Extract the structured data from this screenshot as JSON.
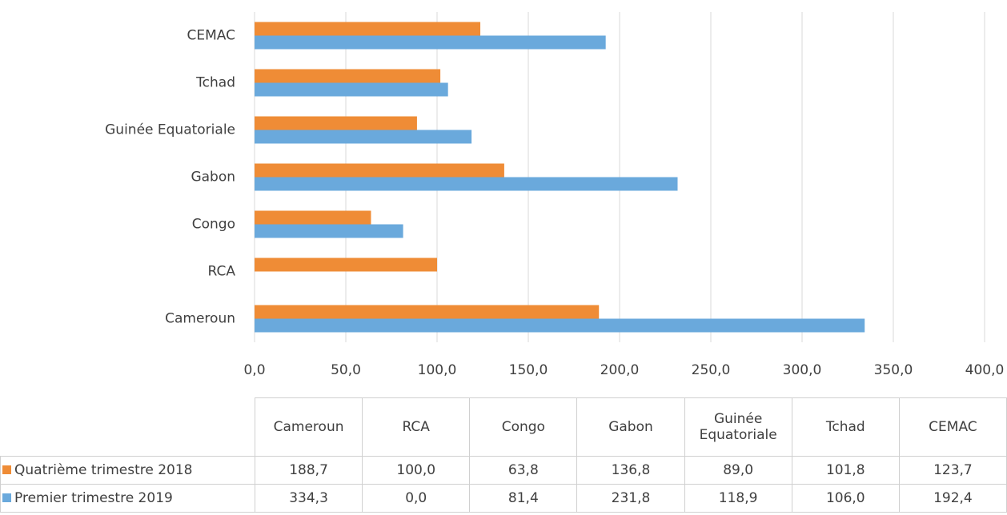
{
  "chart_data": {
    "type": "bar",
    "orientation": "horizontal",
    "categories": [
      "Cameroun",
      "RCA",
      "Congo",
      "Gabon",
      "Guinée Equatoriale",
      "Tchad",
      "CEMAC"
    ],
    "series": [
      {
        "name": "Quatrième trimestre 2018",
        "color": "#ef8c36",
        "values": [
          188.7,
          100.0,
          63.8,
          136.8,
          89.0,
          101.8,
          123.7
        ],
        "value_labels": [
          "188,7",
          "100,0",
          "63,8",
          "136,8",
          "89,0",
          "101,8",
          "123,7"
        ]
      },
      {
        "name": "Premier trimestre 2019",
        "color": "#6aa9dc",
        "values": [
          334.3,
          0.0,
          81.4,
          231.8,
          118.9,
          106.0,
          192.4
        ],
        "value_labels": [
          "334,3",
          "0,0",
          "81,4",
          "231,8",
          "118,9",
          "106,0",
          "192,4"
        ]
      }
    ],
    "xlim": [
      0,
      400
    ],
    "xticks": [
      {
        "value": 0,
        "label": "0,0"
      },
      {
        "value": 50,
        "label": "50,0"
      },
      {
        "value": 100,
        "label": "100,0"
      },
      {
        "value": 150,
        "label": "150,0"
      },
      {
        "value": 200,
        "label": "200,0"
      },
      {
        "value": 250,
        "label": "250,0"
      },
      {
        "value": 300,
        "label": "300,0"
      },
      {
        "value": 350,
        "label": "350,0"
      },
      {
        "value": 400,
        "label": "400,0"
      }
    ],
    "grid": true
  }
}
